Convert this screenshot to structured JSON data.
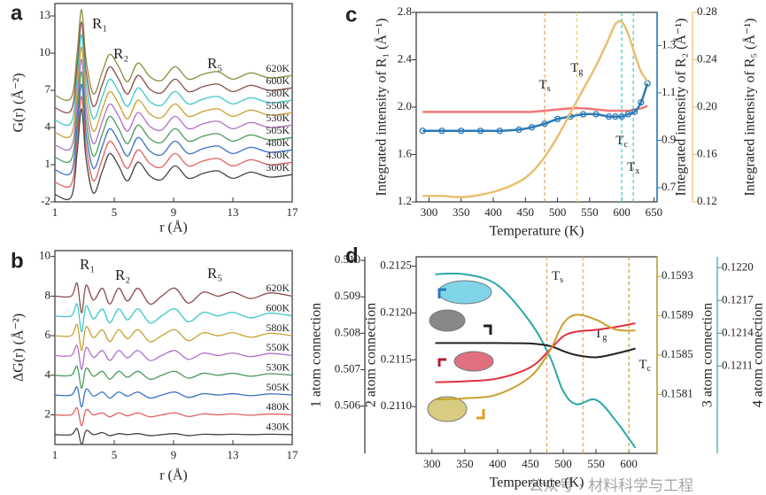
{
  "chart_data": [
    {
      "panel": "a",
      "type": "line",
      "xlabel": "r (Å)",
      "ylabel": "G(r) (Å⁻²)",
      "xlim": [
        1,
        17
      ],
      "ylim": [
        -2,
        14
      ],
      "xticks": [
        1,
        5,
        9,
        13,
        17
      ],
      "yticks": [
        -2,
        1,
        4,
        7,
        10,
        13
      ],
      "annotations": [
        "R₁",
        "R₂",
        "R₅"
      ],
      "x": [
        1,
        2.1,
        2.5,
        2.8,
        3.1,
        3.6,
        4.2,
        4.7,
        5.3,
        5.9,
        6.6,
        7.4,
        8.2,
        9.1,
        10.0,
        11.0,
        12.0,
        13.0,
        14.2,
        15.5,
        17
      ],
      "series": [
        {
          "name": "620K",
          "color": "#8b8b3a",
          "values": [
            6.6,
            6.4,
            10,
            13.5,
            9.5,
            6.7,
            8.5,
            9.9,
            8.9,
            7.7,
            9.2,
            8.1,
            7.8,
            8.9,
            7.9,
            8.3,
            8.5,
            7.9,
            8.4,
            8,
            8.2
          ]
        },
        {
          "name": "600K",
          "color": "#8b4c4c",
          "values": [
            5.6,
            5.4,
            9,
            12.5,
            8.5,
            5.7,
            7.5,
            8.9,
            7.9,
            6.7,
            8.2,
            7.1,
            6.8,
            7.9,
            6.9,
            7.3,
            7.5,
            6.9,
            7.4,
            7,
            7.2
          ]
        },
        {
          "name": "580K",
          "color": "#3cc8c8",
          "values": [
            4.6,
            4.4,
            8,
            11.5,
            7.5,
            4.7,
            6.5,
            7.9,
            6.9,
            5.7,
            7.2,
            6.1,
            5.8,
            6.9,
            5.9,
            6.3,
            6.5,
            5.9,
            6.4,
            6,
            6.2
          ]
        },
        {
          "name": "550K",
          "color": "#c8a030",
          "values": [
            3.6,
            3.4,
            7,
            10.5,
            6.5,
            3.7,
            5.5,
            6.9,
            5.9,
            4.7,
            6.2,
            5.1,
            4.8,
            5.9,
            4.9,
            5.3,
            5.5,
            4.9,
            5.4,
            5,
            5.2
          ]
        },
        {
          "name": "530K",
          "color": "#b070c8",
          "values": [
            2.6,
            2.4,
            6,
            9.5,
            5.5,
            2.7,
            4.5,
            5.9,
            4.9,
            3.7,
            5.2,
            4.1,
            3.8,
            4.9,
            3.9,
            4.3,
            4.5,
            3.9,
            4.4,
            4,
            4.2
          ]
        },
        {
          "name": "505K",
          "color": "#4a9a5a",
          "values": [
            1.6,
            1.4,
            5,
            8.5,
            4.5,
            1.7,
            3.5,
            4.9,
            3.9,
            2.7,
            4.2,
            3.1,
            2.8,
            3.9,
            2.9,
            3.3,
            3.5,
            2.9,
            3.4,
            3,
            3.2
          ]
        },
        {
          "name": "480K",
          "color": "#3a70c0",
          "values": [
            0.6,
            0.4,
            4,
            7.5,
            3.5,
            0.7,
            2.5,
            3.9,
            2.9,
            1.7,
            3.2,
            2.1,
            1.8,
            2.9,
            1.9,
            2.3,
            2.5,
            1.9,
            2.4,
            2,
            2.2
          ]
        },
        {
          "name": "430K",
          "color": "#e06060",
          "values": [
            -0.4,
            -0.6,
            3,
            6.5,
            2.5,
            -0.3,
            1.5,
            2.9,
            1.9,
            0.7,
            2.2,
            1.1,
            0.8,
            1.9,
            0.9,
            1.3,
            1.5,
            0.9,
            1.4,
            1,
            1.2
          ]
        },
        {
          "name": "300K",
          "color": "#444444",
          "values": [
            -1.4,
            -1.6,
            2,
            5.5,
            1.5,
            -1.3,
            0.5,
            1.9,
            0.9,
            -0.3,
            1.2,
            0.1,
            -0.2,
            0.9,
            -0.1,
            0.3,
            0.5,
            -0.1,
            0.4,
            0,
            0.2
          ]
        }
      ]
    },
    {
      "panel": "b",
      "type": "line",
      "xlabel": "r (Å)",
      "ylabel": "ΔG(r) (Å⁻²)",
      "xlim": [
        1,
        17
      ],
      "ylim": [
        0.5,
        10.3
      ],
      "xticks": [
        1,
        5,
        9,
        13,
        17
      ],
      "yticks": [
        2,
        4,
        6,
        8,
        10
      ],
      "annotations": [
        "R₁",
        "R₂",
        "R₅"
      ],
      "x": [
        1,
        2.1,
        2.5,
        2.8,
        3.1,
        3.6,
        4.2,
        4.7,
        5.3,
        5.9,
        6.6,
        7.4,
        8.2,
        9.1,
        10.0,
        11.0,
        12.0,
        13.0,
        14.2,
        15.5,
        17
      ],
      "series": [
        {
          "name": "620K",
          "color": "#8b4c4c",
          "values": [
            8,
            8,
            8.65,
            7.15,
            8.55,
            7.8,
            8.4,
            7.6,
            8.4,
            7.75,
            8.4,
            7.6,
            8,
            8.4,
            7.65,
            8.2,
            8,
            8.2,
            7.88,
            8.16,
            8
          ]
        },
        {
          "name": "600K",
          "color": "#3cc8c8",
          "values": [
            7,
            7,
            7.6,
            6.2,
            7.5,
            6.85,
            7.35,
            6.65,
            7.35,
            6.8,
            7.35,
            6.65,
            7,
            7.35,
            6.7,
            7.18,
            7,
            7.18,
            6.9,
            7.14,
            7
          ]
        },
        {
          "name": "580K",
          "color": "#c8a030",
          "values": [
            6,
            6,
            6.55,
            5.25,
            6.45,
            5.9,
            6.3,
            5.7,
            6.3,
            5.85,
            6.3,
            5.7,
            6,
            6.3,
            5.75,
            6.15,
            6,
            6.15,
            5.92,
            6.12,
            6
          ]
        },
        {
          "name": "550K",
          "color": "#b070c8",
          "values": [
            5,
            5,
            5.5,
            4.3,
            5.4,
            4.9,
            5.25,
            4.75,
            5.25,
            4.88,
            5.25,
            4.75,
            5,
            5.25,
            4.8,
            5.12,
            5,
            5.12,
            4.94,
            5.1,
            5
          ]
        },
        {
          "name": "530K",
          "color": "#4a9a5a",
          "values": [
            4,
            4,
            4.45,
            3.35,
            4.35,
            3.95,
            4.2,
            3.8,
            4.2,
            3.9,
            4.2,
            3.8,
            4,
            4.2,
            3.85,
            4.1,
            4,
            4.1,
            3.95,
            4.08,
            4
          ]
        },
        {
          "name": "505K",
          "color": "#3a70c0",
          "values": [
            3,
            3,
            3.4,
            2.4,
            3.3,
            2.95,
            3.15,
            2.85,
            3.15,
            2.95,
            3.15,
            2.85,
            3,
            3.15,
            2.88,
            3.07,
            3,
            3.07,
            2.97,
            3.06,
            3
          ]
        },
        {
          "name": "480K",
          "color": "#e06060",
          "values": [
            2,
            2,
            2.35,
            1.45,
            2.25,
            2,
            2.1,
            1.9,
            2.1,
            1.95,
            2.1,
            1.9,
            2,
            2.1,
            1.92,
            2.05,
            2,
            2.05,
            1.98,
            2.04,
            2
          ]
        },
        {
          "name": "430K",
          "color": "#444444",
          "values": [
            1,
            1,
            1.3,
            0.5,
            1.2,
            1,
            1.1,
            0.95,
            1.05,
            1,
            1.05,
            0.95,
            1,
            1.05,
            0.95,
            1.02,
            1,
            1.02,
            1,
            1.02,
            1
          ]
        }
      ]
    },
    {
      "panel": "c",
      "type": "line",
      "xlabel": "Temperature (K)",
      "ylabel": "Integrated intensity of R₁ (Å⁻¹)",
      "y2label": "Integrated intensity of R₂ (Å⁻¹)",
      "y3label": "Integrated intensity of R₅ (Å⁻¹)",
      "xlim": [
        280,
        655
      ],
      "ylim": [
        1.2,
        2.8
      ],
      "y2lim": [
        0.64,
        1.44
      ],
      "y3lim": [
        0.12,
        0.28
      ],
      "xticks": [
        300,
        350,
        400,
        450,
        500,
        550,
        600,
        650
      ],
      "yticks": [
        1.2,
        1.6,
        {
          "value": 2,
          "label": "2.0"
        },
        2.4,
        2.8
      ],
      "y2ticks": [
        0.7,
        0.9,
        1.1,
        1.3
      ],
      "y3ticks": [
        0.12,
        0.16,
        {
          "value": 0.2,
          "label": "0.20"
        },
        0.24,
        0.28
      ],
      "vlines": [
        {
          "x": 480,
          "color": "#e8a060",
          "label": "T",
          "sub": "s"
        },
        {
          "x": 530,
          "color": "#e8d070",
          "label": "T",
          "sub": "g"
        },
        {
          "x": 600,
          "color": "#30d0d0",
          "label": "T",
          "sub": "c"
        },
        {
          "x": 618,
          "color": "#30d0d0",
          "label": "T",
          "sub": "x"
        }
      ],
      "x": [
        290,
        320,
        350,
        380,
        410,
        440,
        460,
        480,
        500,
        520,
        540,
        560,
        580,
        590,
        600,
        610,
        620,
        630,
        640
      ],
      "series": [
        {
          "color": "#f07878",
          "axis": "y",
          "values": [
            1.96,
            1.96,
            1.96,
            1.96,
            1.96,
            1.96,
            1.96,
            1.97,
            1.98,
            1.99,
            1.99,
            1.98,
            1.97,
            1.97,
            1.97,
            1.97,
            1.98,
            1.99,
            2.01
          ]
        },
        {
          "color": "#2a7ab8",
          "axis": "y2",
          "marker": "circle",
          "values": [
            0.94,
            0.94,
            0.94,
            0.94,
            0.94,
            0.945,
            0.955,
            0.97,
            0.99,
            1.0,
            1.01,
            1.01,
            1.0,
            1.0,
            1.0,
            1.01,
            1.02,
            1.06,
            1.14
          ]
        },
        {
          "color": "#e8c070",
          "axis": "y3",
          "values": [
            0.125,
            0.125,
            0.124,
            0.126,
            0.13,
            0.137,
            0.145,
            0.158,
            0.175,
            0.195,
            0.215,
            0.235,
            0.258,
            0.27,
            0.272,
            0.262,
            0.245,
            0.23,
            0.222
          ]
        }
      ]
    },
    {
      "panel": "d",
      "type": "line",
      "xlabel": "Temperature (K)",
      "ylabel": "1 atom connection",
      "y2label": "2 atom connection",
      "y3label": "3 atom connection",
      "y4label": "4 atom connection",
      "xlim": [
        276,
        643
      ],
      "ylim": [
        0.5047,
        0.5101
      ],
      "y2lim": [
        0.2105,
        0.2126
      ],
      "y3lim": [
        0.1575,
        0.1595
      ],
      "y4lim": [
        0.1203,
        0.1221
      ],
      "xticks": [
        300,
        350,
        400,
        450,
        500,
        550,
        600
      ],
      "yticks": [
        0.506,
        0.507,
        0.508,
        0.509,
        {
          "value": 0.51,
          "label": "0.510"
        }
      ],
      "y2ticks": [
        {
          "value": 0.211,
          "label": "0.2110"
        },
        0.2115,
        {
          "value": 0.212,
          "label": "0.2120"
        },
        0.2125
      ],
      "y3ticks": [
        0.1581,
        0.1585,
        0.1589,
        0.1593
      ],
      "y4ticks": [
        0.1211,
        0.1214,
        0.1217,
        {
          "value": 0.122,
          "label": "0.1220"
        }
      ],
      "vlines": [
        {
          "x": 475,
          "color": "#e8a060",
          "label": "T",
          "sub": "s"
        },
        {
          "x": 530,
          "color": "#e8a060",
          "label": "T",
          "sub": "g"
        },
        {
          "x": 600,
          "color": "#c8a030",
          "label": "T",
          "sub": "c"
        }
      ],
      "x": [
        305,
        350,
        400,
        450,
        480,
        500,
        520,
        550,
        580,
        610
      ],
      "series": [
        {
          "color": "#2aa8a8",
          "axis": "y4",
          "values": [
            0.12194,
            0.12194,
            0.12184,
            0.1215,
            0.12118,
            0.12087,
            0.12075,
            0.12079,
            0.1206,
            0.12035
          ]
        },
        {
          "color": "#222222",
          "axis": "y",
          "values": [
            0.50773,
            0.50773,
            0.50773,
            0.50772,
            0.50765,
            0.50751,
            0.5074,
            0.50734,
            0.50744,
            0.50758
          ]
        },
        {
          "color": "#e03040",
          "axis": "y2",
          "values": [
            0.21126,
            0.21127,
            0.2113,
            0.21142,
            0.21161,
            0.21175,
            0.2118,
            0.21182,
            0.21185,
            0.21189
          ]
        },
        {
          "color": "#c8a030",
          "axis": "y3",
          "values": [
            0.15805,
            0.15806,
            0.1581,
            0.15828,
            0.15855,
            0.15882,
            0.15891,
            0.15886,
            0.15876,
            0.15875
          ]
        }
      ]
    }
  ],
  "watermark": "公众号 · 材料科学与工程"
}
